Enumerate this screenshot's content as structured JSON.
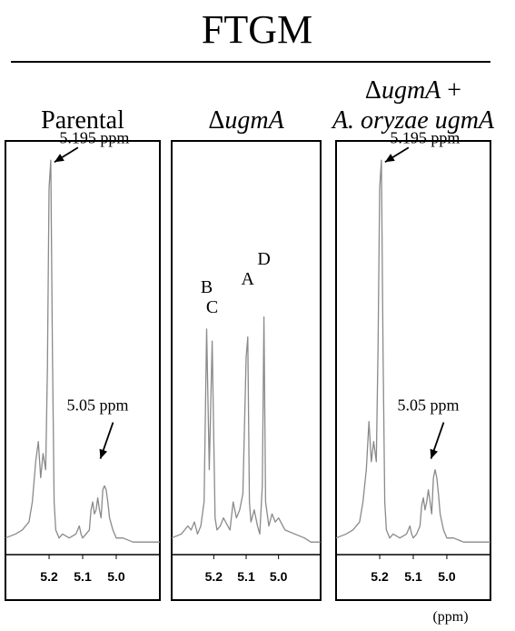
{
  "title": "FTGM",
  "unit_label": "(ppm)",
  "chart_data": [
    {
      "type": "line",
      "title_parts": [
        {
          "text": "Parental",
          "italic": false
        }
      ],
      "xlim": [
        5.33,
        4.87
      ],
      "x_ticks": [
        "5.2",
        "5.1",
        "5.0"
      ],
      "x_tick_values": [
        5.2,
        5.1,
        5.0
      ],
      "ylim": [
        0,
        1.0
      ],
      "annotations": [
        {
          "text": "5.195 ppm",
          "x": 5.195,
          "y": 0.97
        },
        {
          "text": "5.05 ppm",
          "x": 5.05,
          "y": 0.2
        }
      ],
      "series": [
        {
          "x": [
            5.33,
            5.3,
            5.28,
            5.26,
            5.25,
            5.24,
            5.232,
            5.225,
            5.218,
            5.21,
            5.205,
            5.2,
            5.195,
            5.19,
            5.185,
            5.18,
            5.17,
            5.16,
            5.14,
            5.12,
            5.11,
            5.105,
            5.1,
            5.09,
            5.08,
            5.075,
            5.07,
            5.065,
            5.06,
            5.055,
            5.05,
            5.045,
            5.04,
            5.035,
            5.03,
            5.025,
            5.02,
            5.01,
            5.0,
            4.98,
            4.95,
            4.92,
            4.9,
            4.87
          ],
          "y": [
            0.03,
            0.04,
            0.05,
            0.07,
            0.12,
            0.22,
            0.27,
            0.18,
            0.24,
            0.2,
            0.45,
            0.9,
            0.97,
            0.5,
            0.12,
            0.05,
            0.03,
            0.04,
            0.03,
            0.04,
            0.06,
            0.04,
            0.03,
            0.04,
            0.05,
            0.1,
            0.12,
            0.09,
            0.1,
            0.13,
            0.1,
            0.08,
            0.15,
            0.16,
            0.15,
            0.12,
            0.08,
            0.05,
            0.03,
            0.03,
            0.02,
            0.02,
            0.02,
            0.02
          ]
        }
      ]
    },
    {
      "type": "line",
      "title_parts": [
        {
          "text": "Δ",
          "italic": false
        },
        {
          "text": "ugmA",
          "italic": true
        }
      ],
      "xlim": [
        5.33,
        4.87
      ],
      "x_ticks": [
        "5.2",
        "5.1",
        "5.0"
      ],
      "x_tick_values": [
        5.2,
        5.1,
        5.0
      ],
      "ylim": [
        0,
        1.0
      ],
      "peak_labels": [
        {
          "text": "B",
          "x": 5.222,
          "y": 0.6
        },
        {
          "text": "C",
          "x": 5.205,
          "y": 0.55
        },
        {
          "text": "A",
          "x": 5.095,
          "y": 0.62
        },
        {
          "text": "D",
          "x": 5.045,
          "y": 0.67
        }
      ],
      "series": [
        {
          "x": [
            5.33,
            5.3,
            5.28,
            5.27,
            5.26,
            5.25,
            5.24,
            5.23,
            5.222,
            5.214,
            5.205,
            5.196,
            5.19,
            5.18,
            5.17,
            5.15,
            5.14,
            5.13,
            5.12,
            5.11,
            5.1,
            5.095,
            5.09,
            5.085,
            5.075,
            5.065,
            5.058,
            5.05,
            5.045,
            5.04,
            5.03,
            5.02,
            5.01,
            5.0,
            4.98,
            4.95,
            4.92,
            4.9,
            4.87
          ],
          "y": [
            0.03,
            0.04,
            0.06,
            0.05,
            0.07,
            0.04,
            0.06,
            0.12,
            0.55,
            0.2,
            0.52,
            0.08,
            0.05,
            0.06,
            0.08,
            0.05,
            0.12,
            0.08,
            0.1,
            0.14,
            0.48,
            0.53,
            0.12,
            0.07,
            0.1,
            0.06,
            0.04,
            0.16,
            0.58,
            0.12,
            0.06,
            0.09,
            0.07,
            0.08,
            0.05,
            0.04,
            0.03,
            0.02,
            0.02
          ]
        }
      ]
    },
    {
      "type": "line",
      "title_parts": [
        {
          "text": "Δ",
          "italic": false
        },
        {
          "text": "ugmA",
          "italic": true
        },
        {
          "text": " +",
          "italic": false
        }
      ],
      "subtitle_parts": [
        {
          "text": "A. oryzae ugmA",
          "italic": true
        }
      ],
      "xlim": [
        5.33,
        4.87
      ],
      "x_ticks": [
        "5.2",
        "5.1",
        "5.0"
      ],
      "x_tick_values": [
        5.2,
        5.1,
        5.0
      ],
      "ylim": [
        0,
        1.0
      ],
      "annotations": [
        {
          "text": "5.195 ppm",
          "x": 5.195,
          "y": 0.97
        },
        {
          "text": "5.05 ppm",
          "x": 5.05,
          "y": 0.2
        }
      ],
      "series": [
        {
          "x": [
            5.33,
            5.3,
            5.28,
            5.26,
            5.25,
            5.24,
            5.232,
            5.225,
            5.218,
            5.21,
            5.205,
            5.2,
            5.195,
            5.19,
            5.185,
            5.18,
            5.17,
            5.16,
            5.14,
            5.12,
            5.11,
            5.105,
            5.1,
            5.09,
            5.08,
            5.075,
            5.07,
            5.065,
            5.06,
            5.055,
            5.05,
            5.045,
            5.04,
            5.035,
            5.03,
            5.025,
            5.02,
            5.01,
            5.0,
            4.98,
            4.95,
            4.92,
            4.9,
            4.87
          ],
          "y": [
            0.03,
            0.04,
            0.05,
            0.07,
            0.12,
            0.2,
            0.32,
            0.22,
            0.27,
            0.22,
            0.5,
            0.9,
            0.97,
            0.5,
            0.12,
            0.05,
            0.03,
            0.04,
            0.03,
            0.04,
            0.06,
            0.04,
            0.03,
            0.04,
            0.06,
            0.11,
            0.13,
            0.1,
            0.12,
            0.15,
            0.12,
            0.09,
            0.18,
            0.2,
            0.18,
            0.14,
            0.09,
            0.05,
            0.03,
            0.03,
            0.02,
            0.02,
            0.02,
            0.02
          ]
        }
      ]
    }
  ]
}
